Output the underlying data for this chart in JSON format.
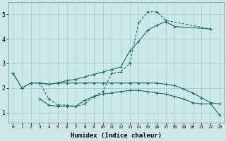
{
  "xlabel": "Humidex (Indice chaleur)",
  "bg_color": "#cce8e8",
  "grid_color": "#aacccc",
  "line_color": "#1a6b6b",
  "line1_solid": {
    "x": [
      0,
      1,
      2,
      3,
      4,
      5,
      6,
      7,
      8,
      9,
      10,
      11,
      12,
      13,
      14,
      15,
      16,
      17,
      18,
      22
    ],
    "y": [
      2.6,
      2.0,
      2.2,
      2.2,
      2.15,
      2.2,
      2.3,
      2.35,
      2.45,
      2.55,
      2.65,
      2.75,
      2.85,
      3.5,
      3.9,
      4.35,
      4.55,
      4.7,
      4.5,
      4.4
    ]
  },
  "line2_dashed": {
    "x": [
      0,
      1,
      2,
      3,
      4,
      5,
      6,
      7,
      8,
      9,
      10,
      11,
      12,
      13,
      14,
      15,
      16,
      17,
      22
    ],
    "y": [
      2.6,
      2.0,
      2.2,
      2.2,
      1.55,
      1.3,
      1.3,
      1.25,
      1.35,
      1.65,
      1.85,
      2.6,
      2.65,
      3.0,
      4.65,
      5.1,
      5.1,
      4.75,
      4.4
    ]
  },
  "line3_solid_low": {
    "x": [
      3,
      4,
      5,
      6,
      7,
      8,
      9,
      10,
      11,
      12,
      13,
      14,
      15,
      16,
      17,
      18,
      19,
      20,
      21,
      22,
      23
    ],
    "y": [
      1.55,
      1.3,
      1.25,
      1.25,
      1.25,
      1.5,
      1.65,
      1.75,
      1.8,
      1.85,
      1.9,
      1.9,
      1.85,
      1.8,
      1.75,
      1.65,
      1.55,
      1.4,
      1.35,
      1.35,
      0.9
    ]
  },
  "line4_solid_mid": {
    "x": [
      3,
      4,
      5,
      6,
      7,
      8,
      9,
      10,
      11,
      12,
      13,
      14,
      15,
      16,
      17,
      18,
      19,
      20,
      21,
      22,
      23
    ],
    "y": [
      2.2,
      2.15,
      2.2,
      2.2,
      2.2,
      2.2,
      2.2,
      2.2,
      2.2,
      2.2,
      2.2,
      2.2,
      2.2,
      2.2,
      2.15,
      2.1,
      1.95,
      1.8,
      1.6,
      1.4,
      1.35
    ]
  },
  "yticks": [
    1,
    2,
    3,
    4,
    5
  ],
  "xticks": [
    0,
    1,
    2,
    3,
    4,
    5,
    6,
    7,
    8,
    9,
    10,
    11,
    12,
    13,
    14,
    15,
    16,
    17,
    18,
    19,
    20,
    21,
    22,
    23
  ],
  "xlim": [
    -0.5,
    23.5
  ],
  "ylim": [
    0.6,
    5.5
  ]
}
